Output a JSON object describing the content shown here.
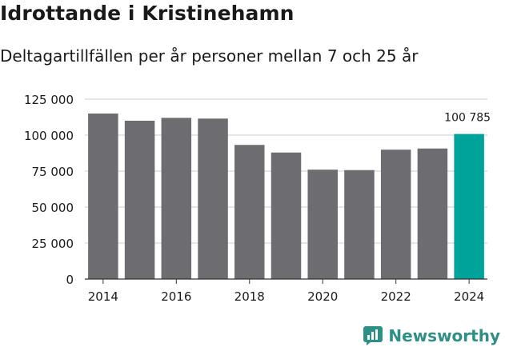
{
  "title": "Idrottande i Kristinehamn",
  "subtitle": "Deltagartillfällen per år personer mellan 7 och 25 år",
  "brand": {
    "name": "Newsworthy",
    "icon": "newsworthy-logo-icon",
    "color": "#2e8f86"
  },
  "colors": {
    "bar": "#6d6c70",
    "highlight": "#00a39a",
    "grid": "#cccccc",
    "text": "#1a1a1a"
  },
  "chart_data": {
    "type": "bar",
    "x": [
      2014,
      2015,
      2016,
      2017,
      2018,
      2019,
      2020,
      2021,
      2022,
      2023,
      2024
    ],
    "values": [
      115000,
      110000,
      112000,
      111500,
      93200,
      87900,
      76000,
      75700,
      89900,
      90700,
      100785
    ],
    "xticks": [
      "2014",
      "2016",
      "2018",
      "2020",
      "2022",
      "2024"
    ],
    "yticks": [
      "0",
      "25 000",
      "50 000",
      "75 000",
      "100 000",
      "125 000"
    ],
    "ylim": [
      0,
      125000
    ],
    "grid": true,
    "highlight_x": 2024,
    "annotations": [
      {
        "x": 2024,
        "label": "100 785"
      }
    ]
  }
}
